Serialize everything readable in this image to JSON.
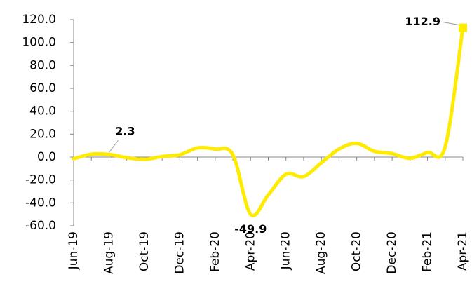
{
  "chart_data": {
    "type": "line",
    "categories": [
      "Jun-19",
      null,
      "Aug-19",
      null,
      "Oct-19",
      null,
      "Dec-19",
      null,
      "Feb-20",
      null,
      "Apr-20",
      null,
      "Jun-20",
      null,
      "Aug-20",
      null,
      "Oct-20",
      null,
      "Dec-20",
      null,
      "Feb-21",
      null,
      "Apr-21"
    ],
    "values": [
      -1.5,
      2.5,
      2.3,
      -0.5,
      -2,
      0.5,
      2,
      8,
      7,
      2,
      -49.9,
      -33,
      -15,
      -17,
      -5,
      7,
      12,
      5,
      3,
      -1,
      4,
      9,
      112.9
    ],
    "value_labels": [
      null,
      null,
      "2.3",
      null,
      null,
      null,
      null,
      null,
      null,
      null,
      "-49.9",
      null,
      null,
      null,
      null,
      null,
      null,
      null,
      null,
      null,
      null,
      null,
      "112.9"
    ],
    "color": "#ffeb00",
    "ylim": [
      -60,
      120
    ],
    "yticks": [
      {
        "value": -60,
        "label": "-60.0"
      },
      {
        "value": -40,
        "label": "-40.0"
      },
      {
        "value": -20,
        "label": "-20.0"
      },
      {
        "value": 0,
        "label": "0.0"
      },
      {
        "value": 20,
        "label": "20.0"
      },
      {
        "value": 40,
        "label": "40.0"
      },
      {
        "value": 60,
        "label": "60.0"
      },
      {
        "value": 80,
        "label": "80.0"
      },
      {
        "value": 100,
        "label": "100.0"
      },
      {
        "value": 120,
        "label": "120.0"
      }
    ]
  }
}
